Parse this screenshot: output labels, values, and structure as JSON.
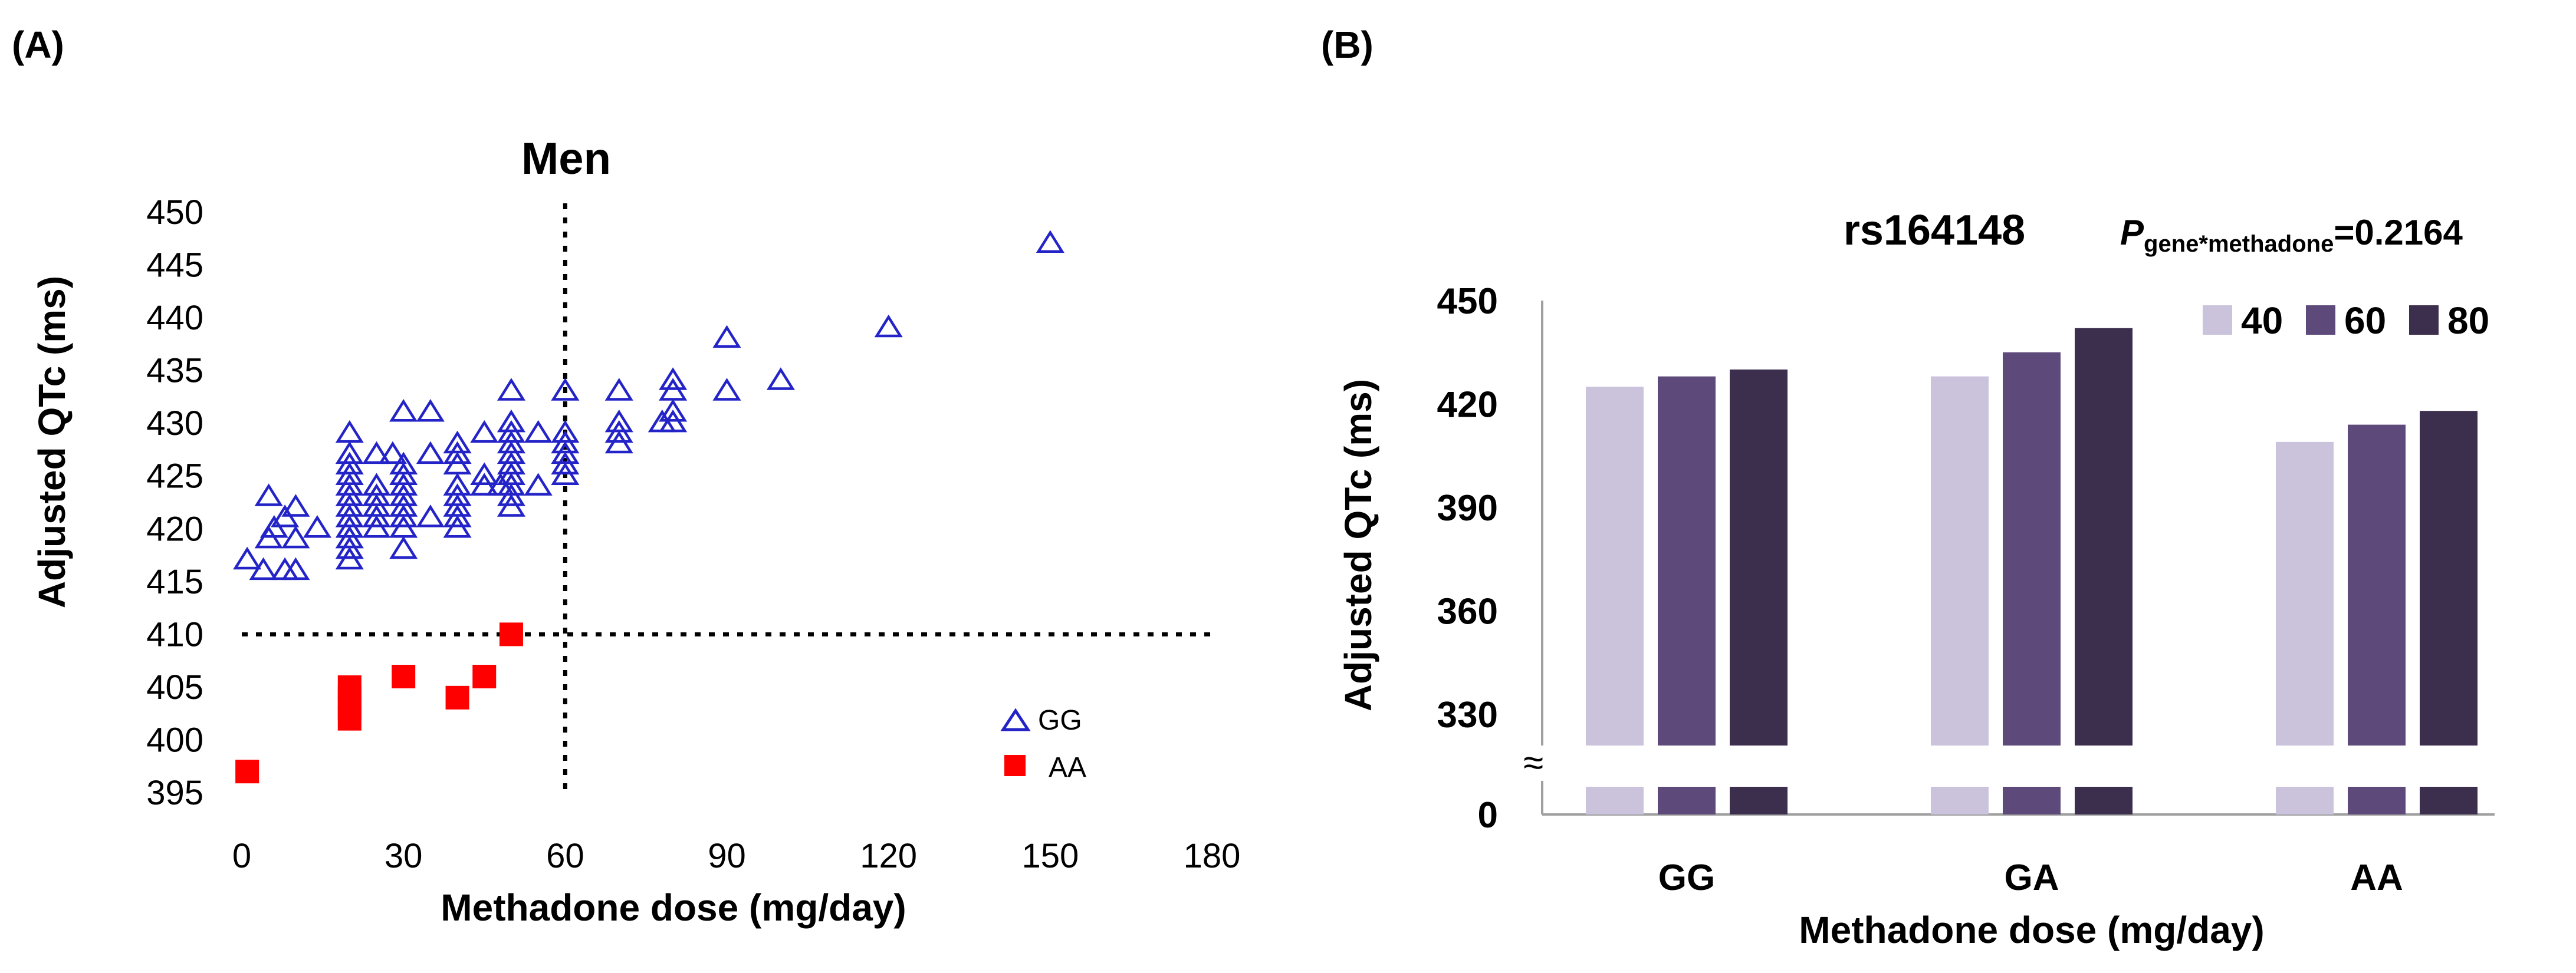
{
  "chart_data": [
    {
      "panel_label": "(A)",
      "type": "scatter",
      "title": "Men",
      "xlabel": "Methadone dose (mg/day)",
      "ylabel": "Adjusted QTc (ms)",
      "xlim": [
        0,
        180
      ],
      "ylim": [
        395,
        450
      ],
      "x_ticks": [
        0,
        30,
        60,
        90,
        120,
        150,
        180
      ],
      "y_ticks": [
        395,
        400,
        405,
        410,
        415,
        420,
        425,
        430,
        435,
        440,
        445,
        450
      ],
      "x_tick_labels": [
        "0",
        "30",
        "60",
        "90",
        "120",
        "150",
        "180"
      ],
      "y_tick_labels": [
        "395",
        "400",
        "405",
        "410",
        "415",
        "420",
        "425",
        "430",
        "435",
        "440",
        "445",
        "450"
      ],
      "reference_lines": {
        "x": 60,
        "y": 410
      },
      "grid": false,
      "legend_position": "bottom-right",
      "series": [
        {
          "name": "GG",
          "marker": "triangle-open",
          "color": "#2323c8",
          "points": [
            [
              1,
              417
            ],
            [
              4,
              416
            ],
            [
              5,
              419
            ],
            [
              5,
              423
            ],
            [
              6,
              420
            ],
            [
              8,
              416
            ],
            [
              8,
              421
            ],
            [
              10,
              416
            ],
            [
              10,
              419
            ],
            [
              10,
              422
            ],
            [
              14,
              420
            ],
            [
              20,
              417
            ],
            [
              20,
              418
            ],
            [
              20,
              419
            ],
            [
              20,
              420
            ],
            [
              20,
              421
            ],
            [
              20,
              422
            ],
            [
              20,
              423
            ],
            [
              20,
              424
            ],
            [
              20,
              425
            ],
            [
              20,
              426
            ],
            [
              20,
              427
            ],
            [
              20,
              429
            ],
            [
              25,
              420
            ],
            [
              25,
              421
            ],
            [
              25,
              422
            ],
            [
              25,
              423
            ],
            [
              25,
              424
            ],
            [
              25,
              427
            ],
            [
              28,
              427
            ],
            [
              30,
              418
            ],
            [
              30,
              420
            ],
            [
              30,
              421
            ],
            [
              30,
              422
            ],
            [
              30,
              423
            ],
            [
              30,
              424
            ],
            [
              30,
              425
            ],
            [
              30,
              426
            ],
            [
              30,
              431
            ],
            [
              35,
              421
            ],
            [
              35,
              427
            ],
            [
              35,
              431
            ],
            [
              40,
              420
            ],
            [
              40,
              421
            ],
            [
              40,
              422
            ],
            [
              40,
              423
            ],
            [
              40,
              424
            ],
            [
              40,
              426
            ],
            [
              40,
              427
            ],
            [
              40,
              428
            ],
            [
              45,
              424
            ],
            [
              45,
              425
            ],
            [
              45,
              429
            ],
            [
              48,
              424
            ],
            [
              50,
              422
            ],
            [
              50,
              423
            ],
            [
              50,
              424
            ],
            [
              50,
              425
            ],
            [
              50,
              426
            ],
            [
              50,
              427
            ],
            [
              50,
              428
            ],
            [
              50,
              429
            ],
            [
              50,
              430
            ],
            [
              50,
              433
            ],
            [
              55,
              424
            ],
            [
              55,
              429
            ],
            [
              60,
              425
            ],
            [
              60,
              426
            ],
            [
              60,
              427
            ],
            [
              60,
              428
            ],
            [
              60,
              429
            ],
            [
              60,
              433
            ],
            [
              70,
              428
            ],
            [
              70,
              429
            ],
            [
              70,
              430
            ],
            [
              70,
              433
            ],
            [
              78,
              430
            ],
            [
              80,
              430
            ],
            [
              80,
              431
            ],
            [
              80,
              433
            ],
            [
              80,
              434
            ],
            [
              90,
              433
            ],
            [
              90,
              438
            ],
            [
              100,
              434
            ],
            [
              120,
              439
            ],
            [
              150,
              447
            ]
          ]
        },
        {
          "name": "AA",
          "marker": "square-filled",
          "color": "#ff0000",
          "points": [
            [
              1,
              397
            ],
            [
              20,
              402
            ],
            [
              20,
              403
            ],
            [
              20,
              404
            ],
            [
              20,
              405
            ],
            [
              30,
              406
            ],
            [
              40,
              404
            ],
            [
              45,
              406
            ],
            [
              50,
              410
            ]
          ]
        }
      ]
    },
    {
      "panel_label": "(B)",
      "type": "bar",
      "title": "rs164148",
      "annotation": {
        "symbol": "P",
        "subscript": "gene*methadone",
        "value": "=0.2164"
      },
      "xlabel": "Methadone dose (mg/day)",
      "ylabel": "Adjusted QTc (ms)",
      "categories": [
        "GG",
        "GA",
        "AA"
      ],
      "ylim": [
        0,
        450
      ],
      "y_ticks": [
        0,
        330,
        360,
        390,
        420,
        450
      ],
      "y_tick_labels": [
        "0",
        "330",
        "360",
        "390",
        "420",
        "450"
      ],
      "axis_break": {
        "from": 0,
        "to": 330,
        "symbol": "≈"
      },
      "grid": false,
      "legend_position": "top-right",
      "series": [
        {
          "name": "40",
          "color": "#cbc2dc",
          "values": [
            425,
            428,
            409
          ]
        },
        {
          "name": "60",
          "color": "#5e4a7a",
          "values": [
            428,
            435,
            414
          ]
        },
        {
          "name": "80",
          "color": "#3c2e4d",
          "values": [
            430,
            442,
            418
          ]
        }
      ]
    }
  ]
}
